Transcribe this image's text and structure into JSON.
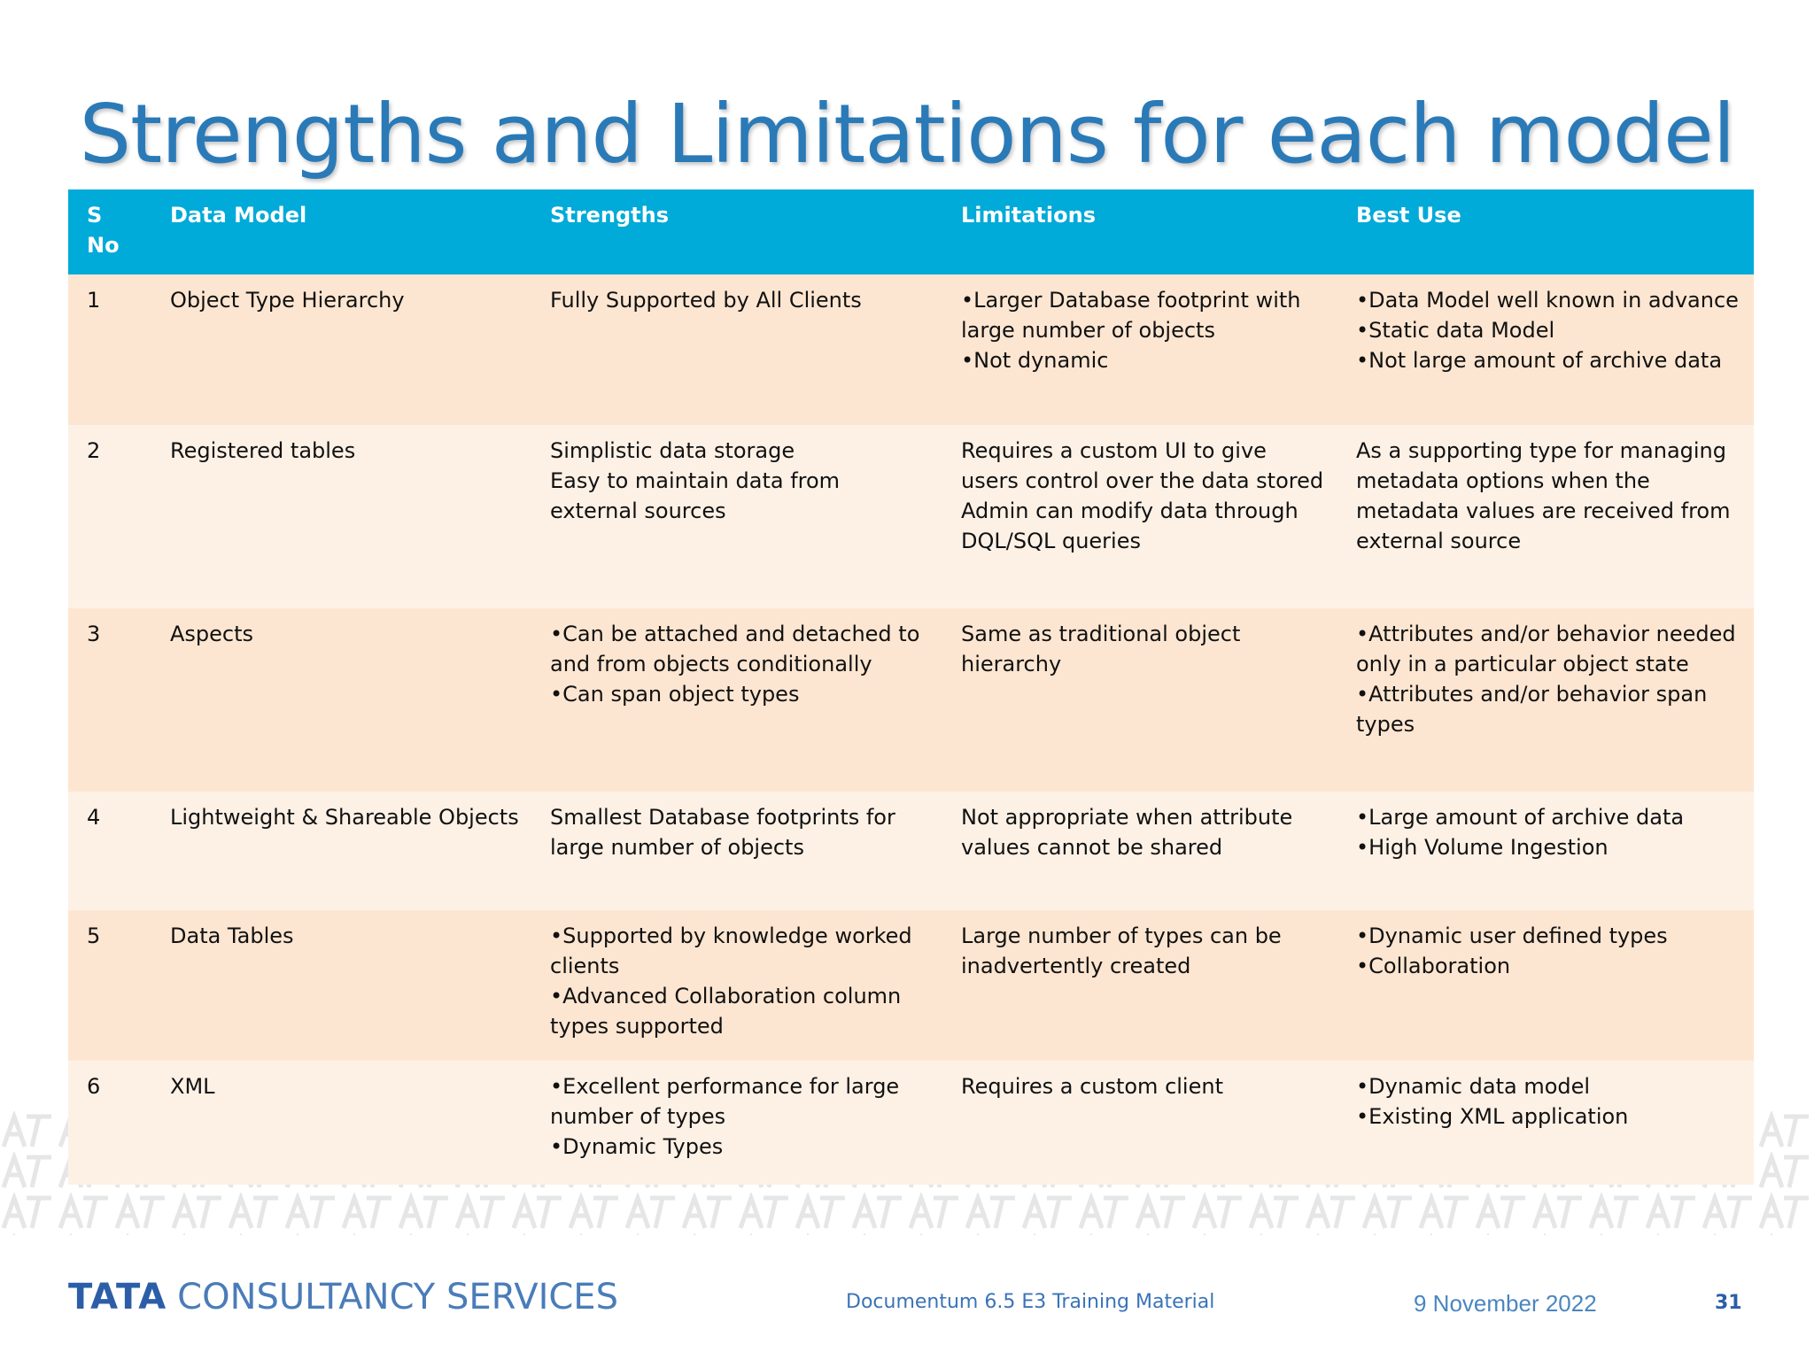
{
  "slide": {
    "title": "Strengths and Limitations for each model",
    "footer": {
      "logo_tata": "TATA",
      "logo_rest": "CONSULTANCY SERVICES",
      "center_text": "Documentum 6.5 E3 Training Material",
      "date": "9 November 2022",
      "page_number": "31"
    }
  },
  "table": {
    "headers": [
      "S No",
      "Data Model",
      "Strengths",
      "Limitations",
      "Best Use"
    ],
    "header_color": "#00aad9",
    "row_colors": [
      "#fde6d1",
      "#fdf1e6"
    ],
    "rows": [
      {
        "sno": "1",
        "model": "Object Type Hierarchy",
        "strengths": [
          "Fully Supported by All Clients"
        ],
        "limitations": [
          "•Larger Database footprint with large number of objects",
          "•Not dynamic"
        ],
        "best_use": [
          "•Data Model well known in advance",
          "•Static data Model",
          "•Not large amount of archive data"
        ]
      },
      {
        "sno": "2",
        "model": "Registered tables",
        "strengths": [
          "Simplistic data storage",
          "Easy to maintain data from external sources"
        ],
        "limitations": [
          "Requires a custom UI to give users control over the data stored",
          "Admin can modify data through DQL/SQL queries"
        ],
        "best_use": [
          "As a supporting type for managing metadata options when the metadata values are received from external source"
        ]
      },
      {
        "sno": "3",
        "model": "Aspects",
        "strengths": [
          "•Can be attached and detached to and from objects conditionally",
          "•Can span object types"
        ],
        "limitations": [
          "Same as traditional object hierarchy"
        ],
        "best_use": [
          "•Attributes and/or behavior needed only in a particular object state",
          "•Attributes and/or behavior span types"
        ]
      },
      {
        "sno": "4",
        "model": "Lightweight & Shareable Objects",
        "strengths": [
          "Smallest Database footprints for large number of objects"
        ],
        "limitations": [
          "Not appropriate when attribute values cannot be shared"
        ],
        "best_use": [
          "•Large amount of archive data",
          "•High Volume Ingestion"
        ]
      },
      {
        "sno": "5",
        "model": "Data Tables",
        "strengths": [
          "•Supported by knowledge worked clients",
          "•Advanced Collaboration column types supported"
        ],
        "limitations": [
          "Large number of types can be inadvertently created"
        ],
        "best_use": [
          "•Dynamic user defined types",
          "•Collaboration"
        ]
      },
      {
        "sno": "6",
        "model": "XML",
        "strengths": [
          "•Excellent performance for large number of types",
          "•Dynamic Types"
        ],
        "limitations": [
          "Requires a custom client"
        ],
        "best_use": [
          "•Dynamic data model",
          "•Existing XML application"
        ]
      }
    ]
  }
}
